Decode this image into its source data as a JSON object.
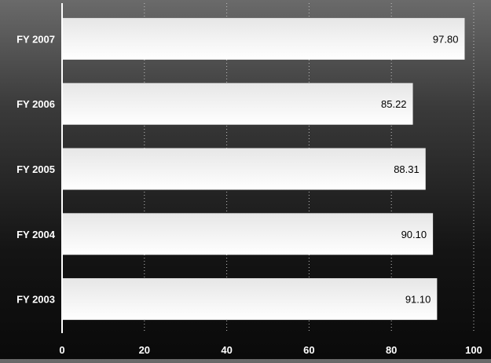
{
  "chart_data": {
    "type": "bar",
    "orientation": "horizontal",
    "title": "",
    "xlabel": "",
    "ylabel": "",
    "categories": [
      "FY 2007",
      "FY 2006",
      "FY 2005",
      "FY 2004",
      "FY 2003"
    ],
    "values": [
      97.8,
      85.22,
      88.31,
      90.1,
      91.1
    ],
    "value_labels": [
      "97.80",
      "85.22",
      "88.31",
      "90.10",
      "91.10"
    ],
    "xlim": [
      0,
      100
    ],
    "x_ticks": [
      0,
      20,
      40,
      60,
      80,
      100
    ],
    "grid": "vertical dotted",
    "legend": "none",
    "colors": {
      "bar_top": "#e6e6e6",
      "bar_bottom": "#ffffff",
      "label_text": "#ffffff",
      "value_text": "#000000",
      "axis": "#ffffff",
      "grid": "#bfbfbf"
    }
  }
}
